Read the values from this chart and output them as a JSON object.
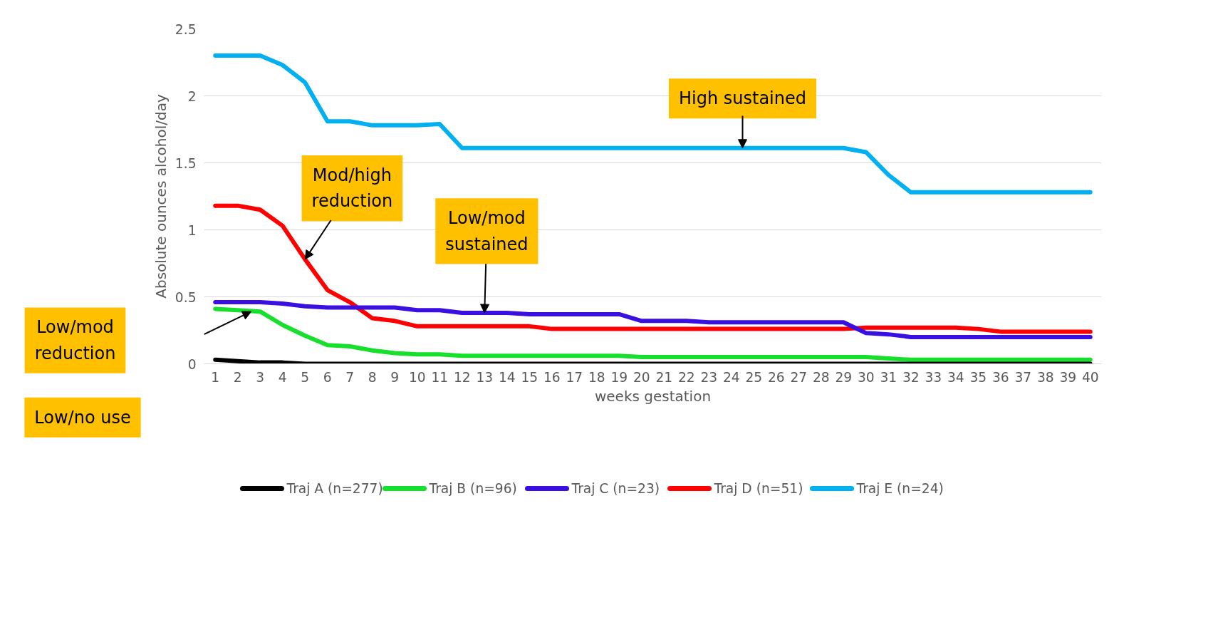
{
  "chart_data": {
    "type": "line",
    "xlabel": "weeks gestation",
    "ylabel": "Absolute ounces alcohol/day",
    "x": [
      1,
      2,
      3,
      4,
      5,
      6,
      7,
      8,
      9,
      10,
      11,
      12,
      13,
      14,
      15,
      16,
      17,
      18,
      19,
      20,
      21,
      22,
      23,
      24,
      25,
      26,
      27,
      28,
      29,
      30,
      31,
      32,
      33,
      34,
      35,
      36,
      37,
      38,
      39,
      40
    ],
    "xlim": [
      0.5,
      40.5
    ],
    "xticks": [
      1,
      2,
      3,
      4,
      5,
      6,
      7,
      8,
      9,
      10,
      11,
      12,
      13,
      14,
      15,
      16,
      17,
      18,
      19,
      20,
      21,
      22,
      23,
      24,
      25,
      26,
      27,
      28,
      29,
      30,
      31,
      32,
      33,
      34,
      35,
      36,
      37,
      38,
      39,
      40
    ],
    "ylim": [
      0,
      2.5
    ],
    "yticks": [
      0,
      0.5,
      1,
      1.5,
      2,
      2.5
    ],
    "grid": "y",
    "legend": "bottom",
    "marker": "none",
    "line_style": "solid",
    "series": [
      {
        "name": "Traj A (n=277)",
        "color": "#000000",
        "values": [
          0.03,
          0.02,
          0.01,
          0.01,
          0,
          0,
          0,
          0,
          0,
          0,
          0,
          0,
          0,
          0,
          0,
          0,
          0,
          0,
          0,
          0,
          0,
          0,
          0,
          0,
          0,
          0,
          0,
          0,
          0,
          0,
          0,
          0,
          0,
          0,
          0,
          0,
          0,
          0,
          0,
          0
        ]
      },
      {
        "name": "Traj B (n=96)",
        "color": "#17e02c",
        "values": [
          0.41,
          0.4,
          0.39,
          0.29,
          0.21,
          0.14,
          0.13,
          0.1,
          0.08,
          0.07,
          0.07,
          0.06,
          0.06,
          0.06,
          0.06,
          0.06,
          0.06,
          0.06,
          0.06,
          0.05,
          0.05,
          0.05,
          0.05,
          0.05,
          0.05,
          0.05,
          0.05,
          0.05,
          0.05,
          0.05,
          0.04,
          0.03,
          0.03,
          0.03,
          0.03,
          0.03,
          0.03,
          0.03,
          0.03,
          0.03
        ]
      },
      {
        "name": "Traj C (n=23)",
        "color": "#3a10e0",
        "values": [
          0.46,
          0.46,
          0.46,
          0.45,
          0.43,
          0.42,
          0.42,
          0.42,
          0.42,
          0.4,
          0.4,
          0.38,
          0.38,
          0.38,
          0.37,
          0.37,
          0.37,
          0.37,
          0.37,
          0.32,
          0.32,
          0.32,
          0.31,
          0.31,
          0.31,
          0.31,
          0.31,
          0.31,
          0.31,
          0.23,
          0.22,
          0.2,
          0.2,
          0.2,
          0.2,
          0.2,
          0.2,
          0.2,
          0.2,
          0.2
        ]
      },
      {
        "name": "Traj D (n=51)",
        "color": "#ff0000",
        "values": [
          1.18,
          1.18,
          1.15,
          1.03,
          0.78,
          0.55,
          0.46,
          0.34,
          0.32,
          0.28,
          0.28,
          0.28,
          0.28,
          0.28,
          0.28,
          0.26,
          0.26,
          0.26,
          0.26,
          0.26,
          0.26,
          0.26,
          0.26,
          0.26,
          0.26,
          0.26,
          0.26,
          0.26,
          0.26,
          0.27,
          0.27,
          0.27,
          0.27,
          0.27,
          0.26,
          0.24,
          0.24,
          0.24,
          0.24,
          0.24
        ]
      },
      {
        "name": "Traj E (n=24)",
        "color": "#00b0f0",
        "values": [
          2.3,
          2.3,
          2.3,
          2.23,
          2.1,
          1.81,
          1.81,
          1.78,
          1.78,
          1.78,
          1.79,
          1.61,
          1.61,
          1.61,
          1.61,
          1.61,
          1.61,
          1.61,
          1.61,
          1.61,
          1.61,
          1.61,
          1.61,
          1.61,
          1.61,
          1.61,
          1.61,
          1.61,
          1.61,
          1.58,
          1.41,
          1.28,
          1.28,
          1.28,
          1.28,
          1.28,
          1.28,
          1.28,
          1.28,
          1.28
        ]
      }
    ],
    "annotations": [
      {
        "text": "High sustained",
        "x": 24.5,
        "y": 1.61
      },
      {
        "text": "Mod/high\nreduction",
        "x": 5,
        "y": 0.78
      },
      {
        "text": "Low/mod\nsustained",
        "x": 13,
        "y": 0.38
      },
      "Low/mod\nreduction",
      "Low/no use"
    ]
  }
}
